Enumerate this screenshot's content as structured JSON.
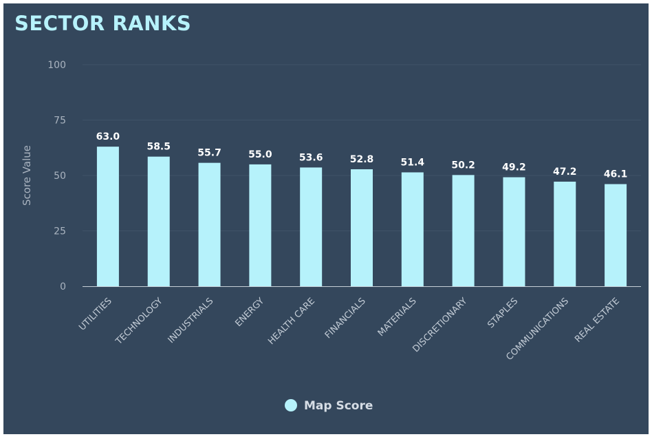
{
  "chart_data": {
    "type": "bar",
    "title": "SECTOR RANKS",
    "xlabel": "",
    "ylabel": "Score Value",
    "ylim": [
      0,
      100
    ],
    "yticks": [
      0,
      25,
      50,
      75,
      100
    ],
    "grid": true,
    "legend_position": "bottom",
    "categories": [
      "UTILITIES",
      "TECHNOLOGY",
      "INDUSTRIALS",
      "ENERGY",
      "HEALTH CARE",
      "FINANCIALS",
      "MATERIALS",
      "DISCRETIONARY",
      "STAPLES",
      "COMMUNICATIONS",
      "REAL ESTATE"
    ],
    "series": [
      {
        "name": "Map Score",
        "values": [
          63.0,
          58.5,
          55.7,
          55.0,
          53.6,
          52.8,
          51.4,
          50.2,
          49.2,
          47.2,
          46.1
        ],
        "labels": [
          "63.0",
          "58.5",
          "55.7",
          "55.0",
          "53.6",
          "52.8",
          "51.4",
          "50.2",
          "49.2",
          "47.2",
          "46.1"
        ]
      }
    ],
    "colors": {
      "bar": "#b6f2fb",
      "background": "#34475c",
      "grid": "#3f5368",
      "axis": "#c8d0d8"
    }
  }
}
